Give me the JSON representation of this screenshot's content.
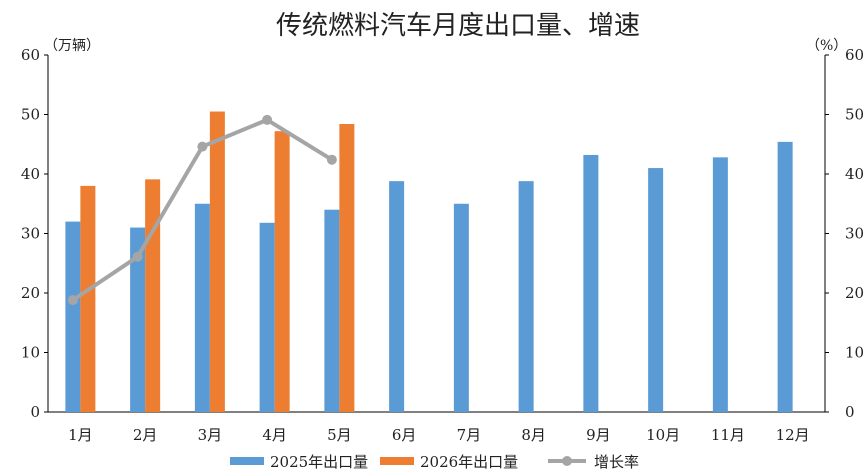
{
  "chart_data": {
    "type": "bar",
    "title": "传统燃料汽车月度出口量、增速",
    "left_unit": "（万辆）",
    "right_unit": "（%）",
    "categories": [
      "1月",
      "2月",
      "3月",
      "4月",
      "5月",
      "6月",
      "7月",
      "8月",
      "9月",
      "10月",
      "11月",
      "12月"
    ],
    "ylim_left": [
      0,
      60
    ],
    "ylim_right": [
      0,
      60
    ],
    "y_ticks": [
      "0",
      "10",
      "20",
      "30",
      "40",
      "50",
      "60"
    ],
    "grid": false,
    "legend_position": "bottom",
    "series": [
      {
        "name": "2025年出口量",
        "kind": "bar",
        "axis": "left",
        "color": "#5b9bd5",
        "values": [
          32,
          31,
          35,
          31.8,
          34,
          38.8,
          35,
          38.8,
          43.2,
          41,
          42.8,
          45.4
        ]
      },
      {
        "name": "2026年出口量",
        "kind": "bar",
        "axis": "left",
        "color": "#ed7d31",
        "values": [
          38,
          39.1,
          50.5,
          47.2,
          48.4,
          null,
          null,
          null,
          null,
          null,
          null,
          null
        ]
      },
      {
        "name": "增长率",
        "kind": "line",
        "axis": "right",
        "color": "#a5a5a5",
        "values": [
          18.8,
          26.1,
          44.6,
          49.1,
          42.4,
          null,
          null,
          null,
          null,
          null,
          null,
          null
        ]
      }
    ]
  }
}
